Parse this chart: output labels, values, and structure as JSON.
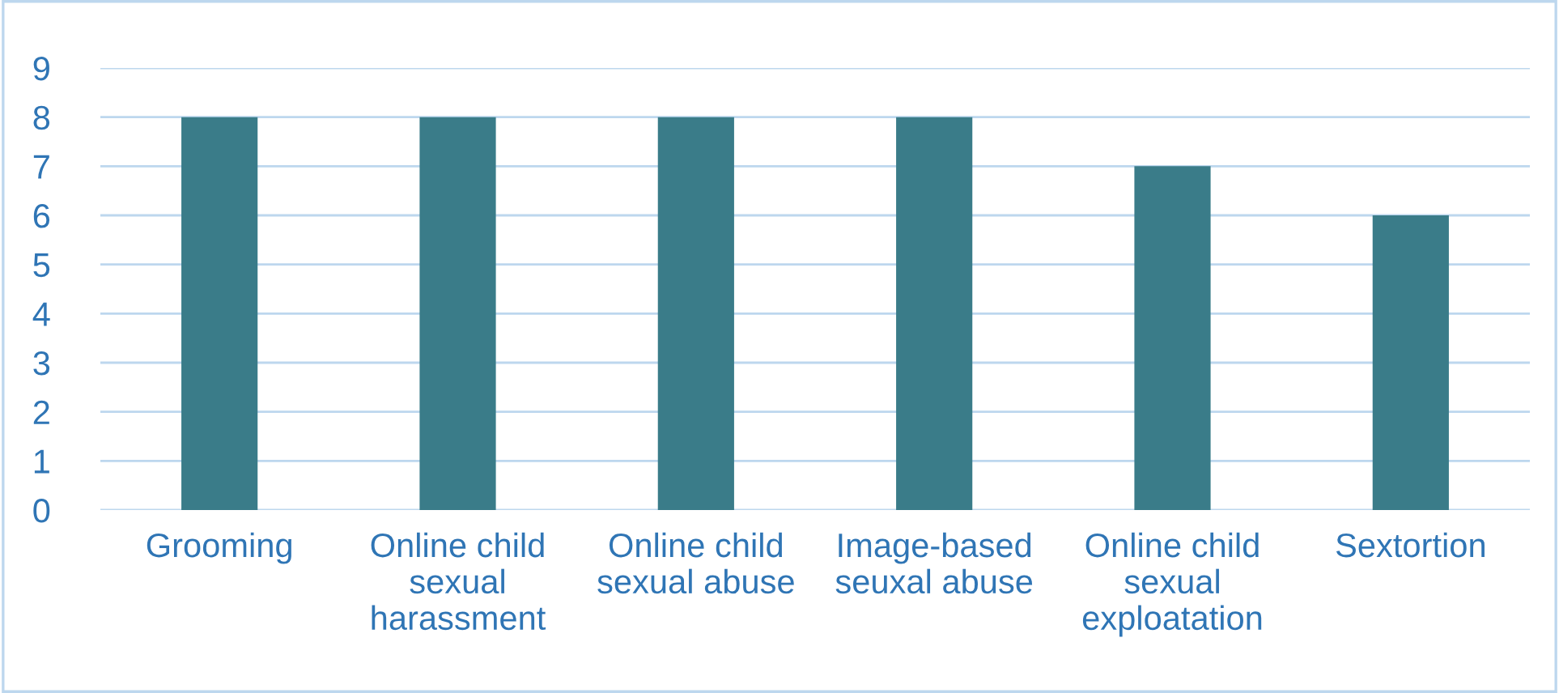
{
  "chart_data": {
    "type": "bar",
    "categories": [
      "Grooming",
      "Online child sexual harassment",
      "Online child sexual abuse",
      "Image-based seuxal abuse",
      "Online child sexual exploatation",
      "Sextortion"
    ],
    "values": [
      8,
      8,
      8,
      8,
      7,
      6
    ],
    "color": "#3a7c89",
    "ylim": [
      0,
      9
    ],
    "yticks": [
      0,
      1,
      2,
      3,
      4,
      5,
      6,
      7,
      8,
      9
    ],
    "grid": "y"
  }
}
